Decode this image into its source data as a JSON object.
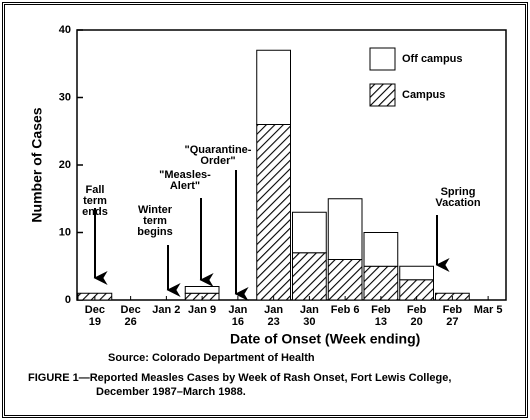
{
  "chart_data": {
    "type": "stacked_bar",
    "x_label": "Date of Onset (Week ending)",
    "y_label": "Number of Cases",
    "categories": [
      "Dec 19",
      "Dec 26",
      "Jan 2",
      "Jan 9",
      "Jan 16",
      "Jan 23",
      "Jan 30",
      "Feb 6",
      "Feb 13",
      "Feb 20",
      "Feb 27",
      "Mar 5"
    ],
    "series": [
      {
        "name": "Campus",
        "color": "#000000",
        "hatch": true,
        "values": [
          1,
          0,
          0,
          1,
          0,
          26,
          7,
          6,
          5,
          3,
          1,
          0
        ]
      },
      {
        "name": "Off campus",
        "color": "#ffffff",
        "hatch": false,
        "values": [
          0,
          0,
          0,
          1,
          0,
          11,
          6,
          9,
          5,
          2,
          0,
          0
        ]
      }
    ],
    "legend_order": [
      "Off campus",
      "Campus"
    ],
    "ylim": [
      0,
      40
    ],
    "yticks": [
      0,
      10,
      20,
      30,
      40
    ],
    "annotations": [
      {
        "lines": [
          "Fall",
          "term",
          "ends"
        ]
      },
      {
        "lines": [
          "Winter",
          "term",
          "begins"
        ]
      },
      {
        "lines": [
          "\"Measles-",
          "Alert\""
        ]
      },
      {
        "lines": [
          "\"Quarantine-",
          "Order\""
        ]
      },
      {
        "lines": [
          "Spring",
          "Vacation"
        ]
      }
    ],
    "source": "Source: Colorado Department of Health",
    "caption": [
      "FIGURE 1—Reported Measles Cases by Week of Rash Onset, Fort Lewis College,",
      "December 1987–March 1988."
    ]
  }
}
